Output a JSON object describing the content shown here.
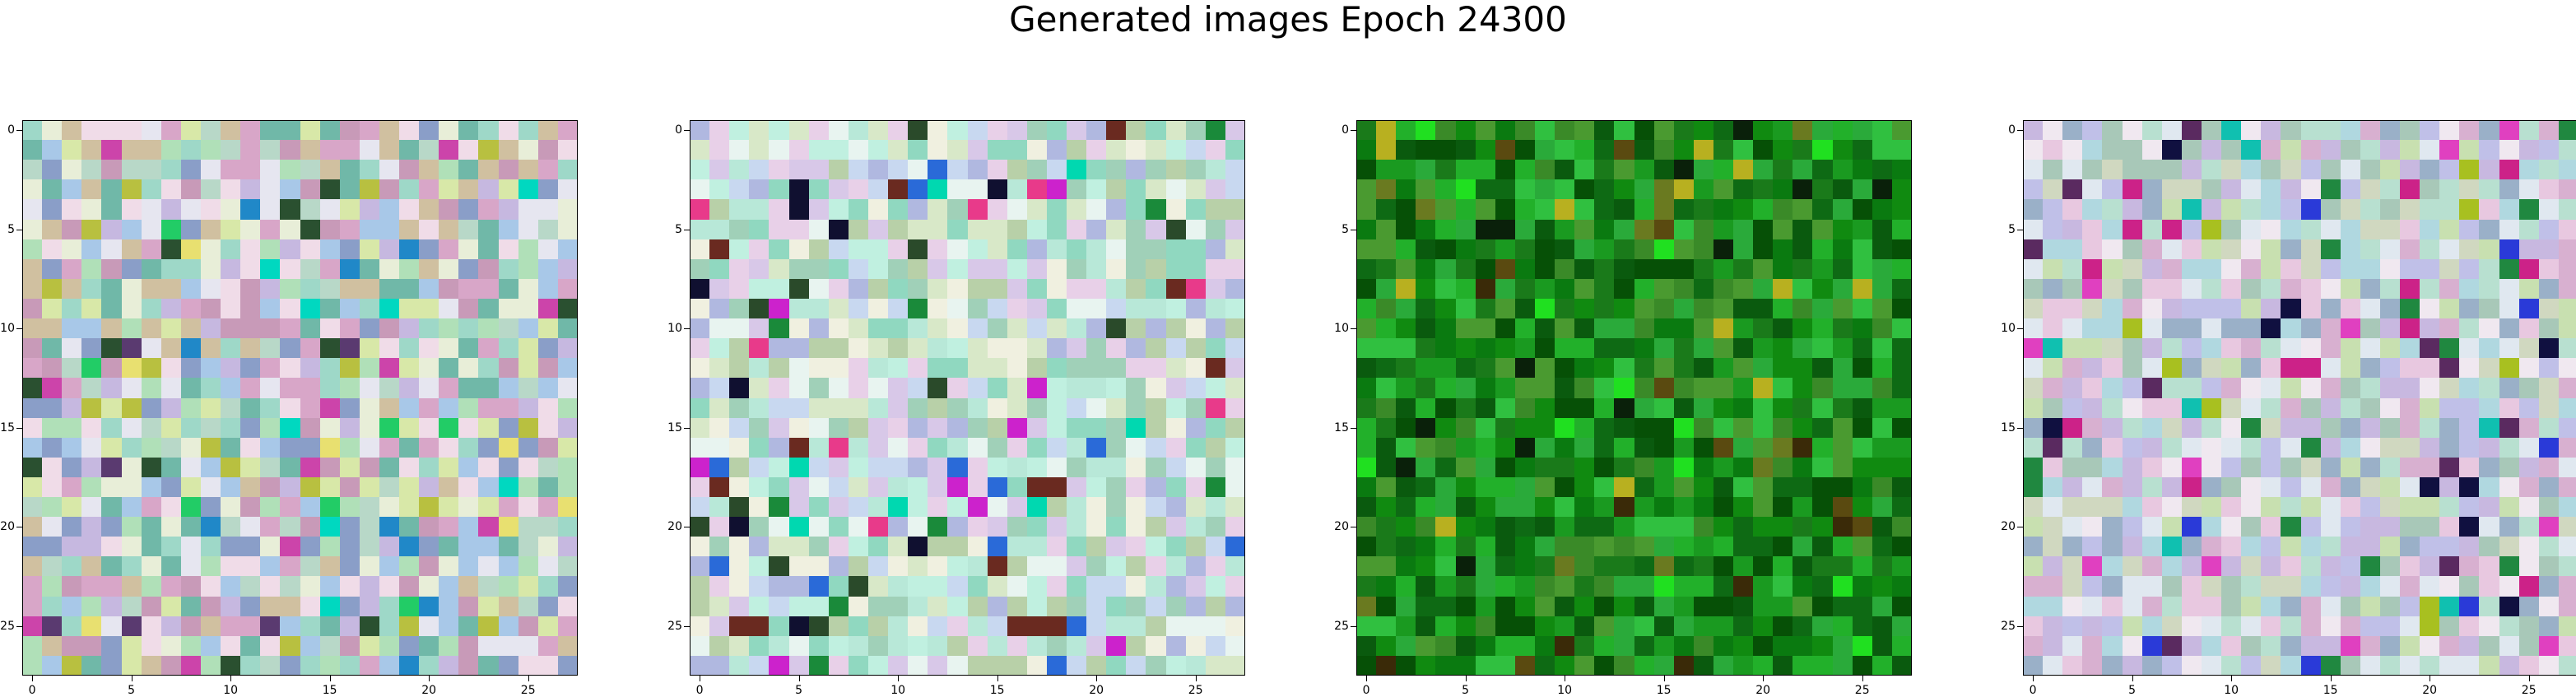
{
  "figure": {
    "title": "Generated images Epoch 24300"
  },
  "chart_data": [
    {
      "type": "heatmap",
      "rows": 28,
      "cols": 28,
      "xticks": [
        0,
        5,
        10,
        15,
        20,
        25
      ],
      "yticks": [
        0,
        5,
        10,
        15,
        20,
        25
      ],
      "xlim": [
        -0.5,
        27.5
      ],
      "ylim": [
        27.5,
        -0.5
      ],
      "palette": [
        "#d8a6c8",
        "#b8d8c8",
        "#c6b8e0",
        "#e8eed8",
        "#9ed8c8",
        "#d0c0a0",
        "#a8c8e8",
        "#f0dce8",
        "#b0e0b8",
        "#8a9ec8",
        "#d8e8a8",
        "#c89ab8",
        "#e6e6f0",
        "#70b8a8"
      ],
      "accent_colors": [
        "#22cc66",
        "#2a5030",
        "#2088c8",
        "#cc44aa",
        "#b8c040",
        "#5a3a70",
        "#00d8c0",
        "#e8e070"
      ],
      "accent_ratio": 0.09,
      "grid": false
    },
    {
      "type": "heatmap",
      "rows": 28,
      "cols": 28,
      "xticks": [
        0,
        5,
        10,
        15,
        20,
        25
      ],
      "yticks": [
        0,
        5,
        10,
        15,
        20,
        25
      ],
      "xlim": [
        -0.5,
        27.5
      ],
      "ylim": [
        27.5,
        -0.5
      ],
      "palette": [
        "#e8f4f0",
        "#b8e8d8",
        "#c8d8f0",
        "#a0d0b8",
        "#e8d0e8",
        "#c0f0e0",
        "#d8e8c8",
        "#b0b8e0",
        "#f0f0e0",
        "#90d8c0",
        "#d8c8e8",
        "#b8d0a8"
      ],
      "accent_colors": [
        "#101030",
        "#1a8a3a",
        "#cc22cc",
        "#2a6ad8",
        "#00d8b0",
        "#6a2a20",
        "#e83a8a",
        "#2a4a2a"
      ],
      "accent_ratio": 0.1,
      "grid": false
    },
    {
      "type": "heatmap",
      "rows": 28,
      "cols": 28,
      "xticks": [
        0,
        5,
        10,
        15,
        20,
        25
      ],
      "yticks": [
        0,
        5,
        10,
        15,
        20,
        25
      ],
      "xlim": [
        -0.5,
        27.5
      ],
      "ylim": [
        27.5,
        -0.5
      ],
      "palette": [
        "#0a7a10",
        "#1a9a20",
        "#0e6a14",
        "#2aaa3a",
        "#0a5a0e",
        "#3a8a28",
        "#108a10",
        "#22b02a",
        "#065006",
        "#4a9a30",
        "#1a7a1a",
        "#30c040"
      ],
      "accent_colors": [
        "#0a200a",
        "#5a4a10",
        "#b8b020",
        "#20e020",
        "#3a2a08",
        "#6a7a20"
      ],
      "accent_ratio": 0.08,
      "grid": false
    },
    {
      "type": "heatmap",
      "rows": 28,
      "cols": 28,
      "xticks": [
        0,
        5,
        10,
        15,
        20,
        25
      ],
      "yticks": [
        0,
        5,
        10,
        15,
        20,
        25
      ],
      "xlim": [
        -0.5,
        27.5
      ],
      "ylim": [
        27.5,
        -0.5
      ],
      "palette": [
        "#e0e8f0",
        "#c8b8e0",
        "#b8e0d0",
        "#e8c8e0",
        "#a8c8b8",
        "#d0d8c0",
        "#c0c0e8",
        "#f0e8f0",
        "#9ab0c8",
        "#d8b0d0",
        "#b0d8e0",
        "#c8e0b0"
      ],
      "accent_colors": [
        "#101040",
        "#cc2288",
        "#2a3ad8",
        "#10c0b0",
        "#e040c0",
        "#208840",
        "#5a2a60",
        "#a8c020"
      ],
      "accent_ratio": 0.1,
      "grid": false
    }
  ]
}
